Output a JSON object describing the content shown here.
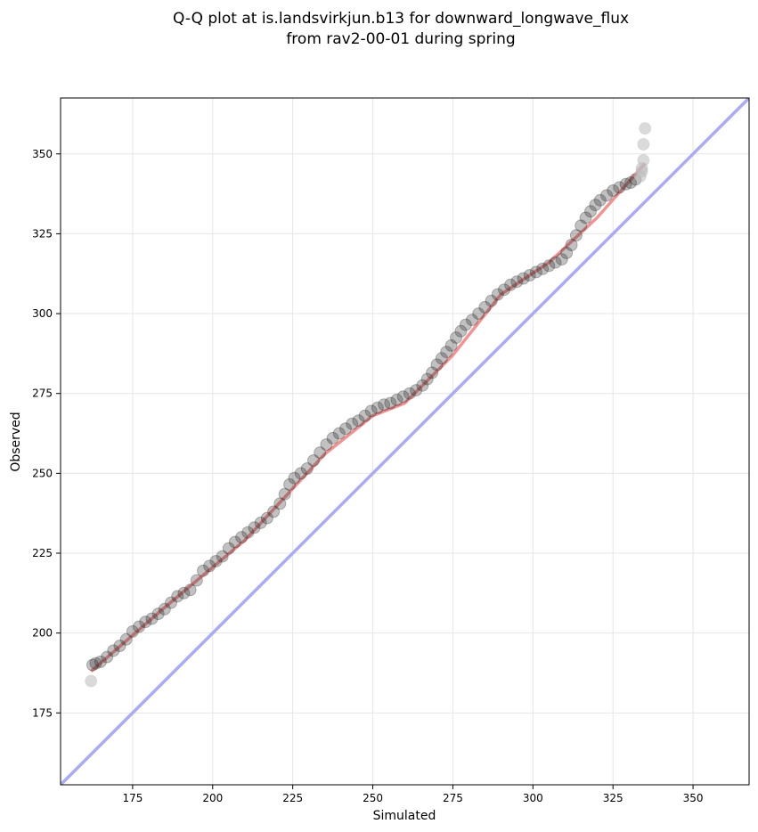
{
  "chart_data": {
    "type": "scatter",
    "title": [
      "Q-Q plot at is.landsvirkjun.b13 for downward_longwave_flux",
      "from rav2-00-01 during spring"
    ],
    "xlabel": "Simulated",
    "ylabel": "Observed",
    "xlim": [
      152.5,
      367.5
    ],
    "ylim": [
      152.5,
      367.5
    ],
    "xticks": [
      175,
      200,
      225,
      250,
      275,
      300,
      325,
      350
    ],
    "yticks": [
      175,
      200,
      225,
      250,
      275,
      300,
      325,
      350
    ],
    "xtick_labels": [
      "175",
      "200",
      "225",
      "250",
      "275",
      "300",
      "325",
      "350"
    ],
    "ytick_labels": [
      "175",
      "200",
      "225",
      "250",
      "275",
      "300",
      "325",
      "350"
    ],
    "grid": true,
    "quantile_points": [
      [
        162,
        185
      ],
      [
        162.5,
        190
      ],
      [
        163.5,
        190.5
      ],
      [
        165,
        191
      ],
      [
        167,
        192.5
      ],
      [
        169,
        194.5
      ],
      [
        171,
        196
      ],
      [
        173,
        198
      ],
      [
        175,
        200.5
      ],
      [
        177,
        202
      ],
      [
        179,
        203.5
      ],
      [
        181,
        204.5
      ],
      [
        183,
        206
      ],
      [
        185,
        207.5
      ],
      [
        187,
        209.5
      ],
      [
        189,
        211.5
      ],
      [
        191,
        212.5
      ],
      [
        193,
        213.5
      ],
      [
        195,
        216.5
      ],
      [
        197,
        219.5
      ],
      [
        199,
        221
      ],
      [
        201,
        222.5
      ],
      [
        203,
        224
      ],
      [
        205,
        226.5
      ],
      [
        207,
        228.5
      ],
      [
        209,
        230
      ],
      [
        211,
        231.5
      ],
      [
        213,
        233
      ],
      [
        215,
        234.5
      ],
      [
        217,
        236
      ],
      [
        219,
        238
      ],
      [
        221,
        240.5
      ],
      [
        222.5,
        243.5
      ],
      [
        224,
        246.5
      ],
      [
        225.5,
        248.5
      ],
      [
        227.5,
        250
      ],
      [
        229.5,
        251.5
      ],
      [
        231.5,
        254
      ],
      [
        233.5,
        256.5
      ],
      [
        235.5,
        259
      ],
      [
        237.5,
        261
      ],
      [
        239.5,
        262.5
      ],
      [
        241.5,
        264
      ],
      [
        243.5,
        265.5
      ],
      [
        245.5,
        266.5
      ],
      [
        247.5,
        268
      ],
      [
        249.5,
        269.5
      ],
      [
        251.5,
        270.5
      ],
      [
        253.5,
        271.5
      ],
      [
        255.5,
        272
      ],
      [
        257.5,
        273
      ],
      [
        259.5,
        274
      ],
      [
        261.5,
        275
      ],
      [
        263.5,
        276
      ],
      [
        265.5,
        277.5
      ],
      [
        267,
        279.5
      ],
      [
        268.5,
        281.5
      ],
      [
        270,
        284
      ],
      [
        271.5,
        286
      ],
      [
        273,
        288
      ],
      [
        274.5,
        290
      ],
      [
        276,
        292.5
      ],
      [
        277.5,
        294.5
      ],
      [
        279,
        296.5
      ],
      [
        281,
        298
      ],
      [
        283,
        300
      ],
      [
        285,
        302
      ],
      [
        287,
        304
      ],
      [
        289,
        306
      ],
      [
        291,
        307.5
      ],
      [
        293,
        309
      ],
      [
        295,
        310
      ],
      [
        297,
        311
      ],
      [
        299,
        312
      ],
      [
        301,
        313
      ],
      [
        303,
        314
      ],
      [
        305,
        315
      ],
      [
        307,
        316
      ],
      [
        309,
        317
      ],
      [
        310.5,
        319
      ],
      [
        312,
        321.5
      ],
      [
        313.5,
        324.5
      ],
      [
        315,
        327.5
      ],
      [
        316.5,
        330
      ],
      [
        318,
        332
      ],
      [
        319.5,
        334
      ],
      [
        321,
        335.5
      ],
      [
        323,
        337
      ],
      [
        325,
        338.5
      ],
      [
        327,
        339.5
      ],
      [
        329,
        340.5
      ],
      [
        330.5,
        341
      ],
      [
        332,
        342
      ],
      [
        333.5,
        343
      ],
      [
        334,
        344.5
      ],
      [
        334,
        345.5
      ],
      [
        334.5,
        348
      ],
      [
        334.5,
        353
      ],
      [
        335,
        358
      ]
    ],
    "reference_line": {
      "name": "",
      "color": "#aaaaf5",
      "points": [
        [
          152.5,
          152.5
        ],
        [
          367.5,
          367.5
        ]
      ]
    },
    "fit_line": {
      "name": "",
      "color": "#f08080",
      "points": [
        [
          162,
          188
        ],
        [
          185,
          208
        ],
        [
          210,
          229
        ],
        [
          235,
          256
        ],
        [
          250,
          268
        ],
        [
          260,
          272
        ],
        [
          275,
          287
        ],
        [
          290,
          306
        ],
        [
          305,
          316
        ],
        [
          320,
          330
        ],
        [
          335,
          347
        ]
      ]
    },
    "colors": {
      "points": "#222222",
      "points_faded": "#bbbbbb",
      "grid": "#e6e6e6",
      "axes": "#000000"
    }
  }
}
